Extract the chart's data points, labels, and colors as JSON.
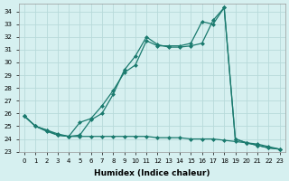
{
  "xlabel": "Humidex (Indice chaleur)",
  "background_color": "#d6f0f0",
  "grid_color": "#b8dada",
  "line_color": "#1a7a6e",
  "xlim": [
    -0.5,
    23.5
  ],
  "ylim": [
    23,
    34.6
  ],
  "xticks": [
    0,
    1,
    2,
    3,
    4,
    5,
    6,
    7,
    8,
    9,
    10,
    11,
    12,
    13,
    14,
    15,
    16,
    17,
    18,
    19,
    20,
    21,
    22,
    23
  ],
  "yticks": [
    23,
    24,
    25,
    26,
    27,
    28,
    29,
    30,
    31,
    32,
    33,
    34
  ],
  "line1_x": [
    0,
    1,
    2,
    3,
    4,
    5,
    6,
    7,
    8,
    9,
    10,
    11,
    12,
    13,
    14,
    15,
    16,
    17,
    18,
    19,
    20,
    21,
    22,
    23
  ],
  "line1_y": [
    25.8,
    25.0,
    24.6,
    24.3,
    24.2,
    25.3,
    25.6,
    26.6,
    27.8,
    29.2,
    29.8,
    31.7,
    31.3,
    31.3,
    31.3,
    31.5,
    33.2,
    33.0,
    34.3,
    24.0,
    23.7,
    23.5,
    23.3,
    23.2
  ],
  "line2_x": [
    0,
    1,
    2,
    3,
    4,
    5,
    6,
    7,
    8,
    9,
    10,
    11,
    12,
    13,
    14,
    15,
    16,
    17,
    18,
    19,
    20,
    21,
    22,
    23
  ],
  "line2_y": [
    25.8,
    25.0,
    24.7,
    24.3,
    24.2,
    24.3,
    25.5,
    26.0,
    27.5,
    29.4,
    30.5,
    32.0,
    31.4,
    31.2,
    31.2,
    31.3,
    31.5,
    33.3,
    34.3,
    24.0,
    23.7,
    23.5,
    23.3,
    23.2
  ],
  "flat_x": [
    0,
    1,
    2,
    3,
    4,
    5,
    6,
    7,
    8,
    9,
    10,
    11,
    12,
    13,
    14,
    15,
    16,
    17,
    18,
    19,
    20,
    21,
    22,
    23
  ],
  "flat_y": [
    25.8,
    25.0,
    24.7,
    24.4,
    24.2,
    24.2,
    24.2,
    24.2,
    24.2,
    24.2,
    24.2,
    24.2,
    24.1,
    24.1,
    24.1,
    24.0,
    24.0,
    24.0,
    23.9,
    23.8,
    23.7,
    23.6,
    23.4,
    23.2
  ]
}
